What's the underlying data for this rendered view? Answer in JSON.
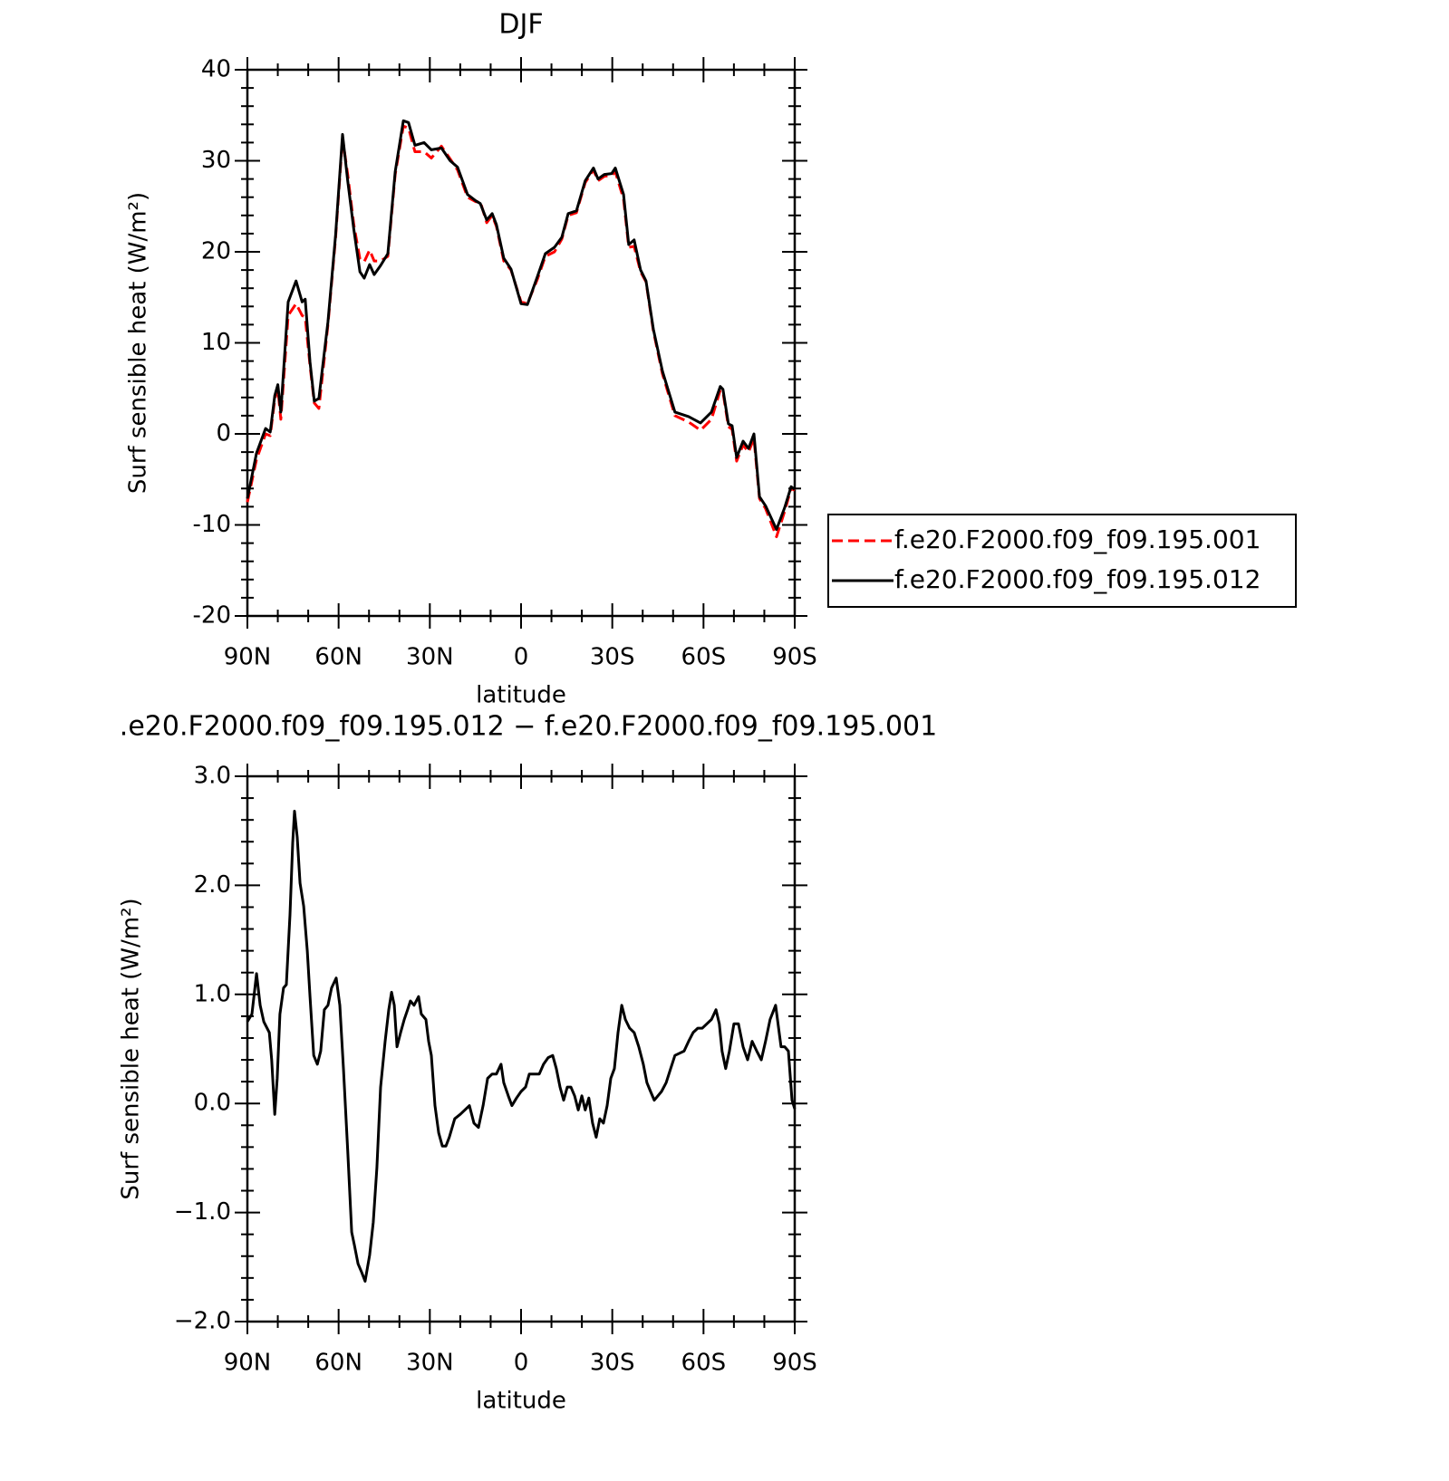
{
  "chart_data": [
    {
      "type": "line",
      "title": "DJF",
      "xlabel": "latitude",
      "ylabel": "Surf sensible heat (W/m²)",
      "xlim": [
        90,
        -90
      ],
      "xticks": [
        {
          "value": 90,
          "label": "90N"
        },
        {
          "value": 60,
          "label": "60N"
        },
        {
          "value": 30,
          "label": "30N"
        },
        0,
        {
          "value": -30,
          "label": "30S"
        },
        {
          "value": -60,
          "label": "60S"
        },
        {
          "value": -90,
          "label": "90S"
        }
      ],
      "ylim": [
        -20,
        40
      ],
      "yticks": [
        -20,
        -10,
        0,
        10,
        20,
        30,
        40
      ],
      "legend": "right",
      "x": [
        90,
        87,
        84,
        82.5,
        81,
        80,
        79,
        76.6,
        74,
        72,
        71,
        69.4,
        68,
        66.5,
        63.5,
        61,
        58.7,
        57,
        55,
        53,
        51.6,
        49.8,
        48.3,
        46.2,
        43.8,
        41.4,
        38.7,
        37,
        34.9,
        31.9,
        29.5,
        26.2,
        23.3,
        20.9,
        17.6,
        14.9,
        13.4,
        11.3,
        9.5,
        8.1,
        5.7,
        3.3,
        0,
        -2.1,
        -5.4,
        -8,
        -11,
        -13.4,
        -15.5,
        -18.2,
        -21.1,
        -23.8,
        -25.3,
        -27.4,
        -29.8,
        -31,
        -33.7,
        -35.4,
        -37.2,
        -39.3,
        -41.1,
        -43.5,
        -46.5,
        -50.6,
        -55.1,
        -59,
        -62.6,
        -65.5,
        -66.4,
        -68.2,
        -69.4,
        -70.9,
        -73,
        -74.8,
        -76.6,
        -78.4,
        -80.4,
        -84,
        -86.7,
        -88.8,
        -90
      ],
      "series": [
        {
          "name": "f.e20.F2000.f09_f09.195.001",
          "color": "#ff0000",
          "line_style": "dashed",
          "values": [
            -7.5,
            -2.8,
            0.0,
            -0.2,
            3.8,
            5.0,
            1.6,
            13.0,
            14.3,
            13.0,
            12.8,
            7.5,
            3.4,
            2.8,
            12.0,
            21.5,
            32.5,
            28.5,
            23.0,
            19.2,
            18.9,
            20.2,
            19.0,
            19.0,
            19.5,
            28.5,
            33.8,
            33.6,
            31.0,
            31.0,
            30.3,
            31.6,
            30.2,
            29.0,
            26.0,
            25.5,
            25.5,
            23.2,
            24.0,
            22.8,
            19.0,
            18.0,
            14.5,
            14.3,
            17.0,
            19.5,
            20.0,
            21.4,
            24.0,
            24.3,
            27.6,
            29.0,
            27.8,
            28.3,
            28.4,
            28.8,
            25.8,
            20.5,
            20.6,
            17.8,
            16.7,
            11.3,
            6.6,
            2.0,
            1.3,
            0.4,
            1.6,
            4.8,
            4.6,
            0.8,
            0.5,
            -3.0,
            -1.2,
            -2.0,
            -0.5,
            -7.1,
            -8.2,
            -11.3,
            -8.5,
            -6.0,
            -6.2
          ]
        },
        {
          "name": "f.e20.F2000.f09_f09.195.012",
          "color": "#000000",
          "line_style": "solid",
          "values": [
            -7.1,
            -2.1,
            0.6,
            0.2,
            4.2,
            5.4,
            2.4,
            14.5,
            16.8,
            14.5,
            14.8,
            7.9,
            3.6,
            3.9,
            12.3,
            21.8,
            32.9,
            27.8,
            22.5,
            17.8,
            17.1,
            18.6,
            17.5,
            18.5,
            19.8,
            28.8,
            34.4,
            34.2,
            31.7,
            32.0,
            31.2,
            31.4,
            30.0,
            29.3,
            26.3,
            25.6,
            25.3,
            23.5,
            24.2,
            23.0,
            19.3,
            18.1,
            14.3,
            14.2,
            17.3,
            19.8,
            20.5,
            21.6,
            24.2,
            24.5,
            27.8,
            29.2,
            28.0,
            28.5,
            28.6,
            29.2,
            26.3,
            20.8,
            21.3,
            18.0,
            16.8,
            11.5,
            6.9,
            2.4,
            1.9,
            1.2,
            2.4,
            5.2,
            4.9,
            1.1,
            0.9,
            -2.6,
            -0.8,
            -1.6,
            0.0,
            -6.9,
            -7.9,
            -10.5,
            -8.1,
            -5.8,
            -6.1
          ]
        }
      ]
    },
    {
      "type": "line",
      "title": ".e20.F2000.f09_f09.195.012 − f.e20.F2000.f09_f09.195.001",
      "xlabel": "latitude",
      "ylabel": "Surf sensible heat (W/m²)",
      "xlim": [
        90,
        -90
      ],
      "xticks": [
        {
          "value": 90,
          "label": "90N"
        },
        {
          "value": 60,
          "label": "60N"
        },
        {
          "value": 30,
          "label": "30N"
        },
        0,
        {
          "value": -30,
          "label": "30S"
        },
        {
          "value": -60,
          "label": "60S"
        },
        {
          "value": -90,
          "label": "90S"
        }
      ],
      "ylim": [
        -2,
        3
      ],
      "yticks": [
        {
          "value": -2,
          "label": "−2.0"
        },
        {
          "value": -1,
          "label": "−1.0"
        },
        {
          "value": 0,
          "label": "0.0"
        },
        {
          "value": 1,
          "label": "1.0"
        },
        {
          "value": 2,
          "label": "2.0"
        },
        {
          "value": 3,
          "label": "3.0"
        }
      ],
      "x": [
        90,
        88.5,
        87,
        85.8,
        84.6,
        82.8,
        82,
        81,
        80.2,
        79.3,
        78.1,
        77.2,
        76,
        75.1,
        74.5,
        73.6,
        72.7,
        71.5,
        70.3,
        69.4,
        68.2,
        67,
        65.9,
        64.7,
        63.5,
        62.3,
        60.8,
        59.6,
        58.4,
        57,
        55.7,
        54.8,
        53.6,
        52.4,
        51.3,
        49.8,
        48.6,
        47.4,
        46.2,
        44.7,
        43.5,
        42.6,
        41.7,
        40.8,
        39.6,
        38.4,
        37.3,
        36.4,
        35.2,
        33.7,
        32.8,
        31.3,
        30.4,
        29.5,
        28.3,
        27.1,
        25.9,
        24.7,
        23.6,
        21.8,
        20,
        18.5,
        17,
        15.5,
        14,
        12.5,
        11,
        9.5,
        8.1,
        6.6,
        5.7,
        4.2,
        3,
        1.5,
        0,
        -1.5,
        -2.7,
        -4.5,
        -6,
        -7.4,
        -8.9,
        -10.4,
        -11.6,
        -12.8,
        -14,
        -15.2,
        -16.4,
        -17.6,
        -18.8,
        -20,
        -21.1,
        -22.3,
        -23.5,
        -24.7,
        -25.9,
        -27.1,
        -28.3,
        -29.5,
        -30.7,
        -31.9,
        -33.1,
        -34.3,
        -35.7,
        -37.2,
        -38.7,
        -40.2,
        -41.4,
        -42.6,
        -43.8,
        -45,
        -46.2,
        -47.7,
        -49.2,
        -50.6,
        -52.1,
        -53.6,
        -55.1,
        -56.6,
        -58.1,
        -59.6,
        -61.1,
        -62.6,
        -64.1,
        -65.2,
        -66.1,
        -67.3,
        -68.5,
        -70,
        -71.5,
        -73,
        -74.5,
        -76,
        -77.5,
        -79,
        -80.4,
        -81.9,
        -83.7,
        -85.5,
        -86.7,
        -87.9,
        -89.1,
        -90
      ],
      "series": [
        {
          "color": "#000000",
          "line_style": "solid",
          "values": [
            0.75,
            0.82,
            1.19,
            0.9,
            0.75,
            0.65,
            0.4,
            -0.1,
            0.23,
            0.82,
            1.06,
            1.09,
            1.73,
            2.39,
            2.68,
            2.44,
            2.02,
            1.81,
            1.4,
            0.98,
            0.44,
            0.36,
            0.48,
            0.86,
            0.9,
            1.06,
            1.15,
            0.9,
            0.32,
            -0.43,
            -1.18,
            -1.3,
            -1.47,
            -1.55,
            -1.63,
            -1.39,
            -1.09,
            -0.59,
            0.15,
            0.57,
            0.86,
            1.02,
            0.9,
            0.52,
            0.65,
            0.77,
            0.86,
            0.94,
            0.9,
            0.98,
            0.82,
            0.77,
            0.57,
            0.44,
            -0.02,
            -0.27,
            -0.39,
            -0.39,
            -0.31,
            -0.14,
            -0.1,
            -0.06,
            -0.02,
            -0.18,
            -0.22,
            -0.02,
            0.23,
            0.27,
            0.27,
            0.36,
            0.19,
            0.07,
            -0.02,
            0.05,
            0.11,
            0.15,
            0.27,
            0.27,
            0.27,
            0.36,
            0.42,
            0.44,
            0.32,
            0.15,
            0.03,
            0.15,
            0.15,
            0.07,
            -0.06,
            0.07,
            -0.06,
            0.05,
            -0.18,
            -0.31,
            -0.14,
            -0.18,
            -0.02,
            0.23,
            0.32,
            0.65,
            0.9,
            0.77,
            0.69,
            0.65,
            0.52,
            0.36,
            0.19,
            0.11,
            0.03,
            0.07,
            0.11,
            0.19,
            0.32,
            0.44,
            0.46,
            0.48,
            0.57,
            0.65,
            0.69,
            0.69,
            0.73,
            0.77,
            0.86,
            0.73,
            0.48,
            0.32,
            0.48,
            0.73,
            0.73,
            0.52,
            0.4,
            0.57,
            0.48,
            0.4,
            0.57,
            0.77,
            0.9,
            0.52,
            0.52,
            0.48,
            0.03,
            -0.05
          ]
        }
      ]
    }
  ]
}
